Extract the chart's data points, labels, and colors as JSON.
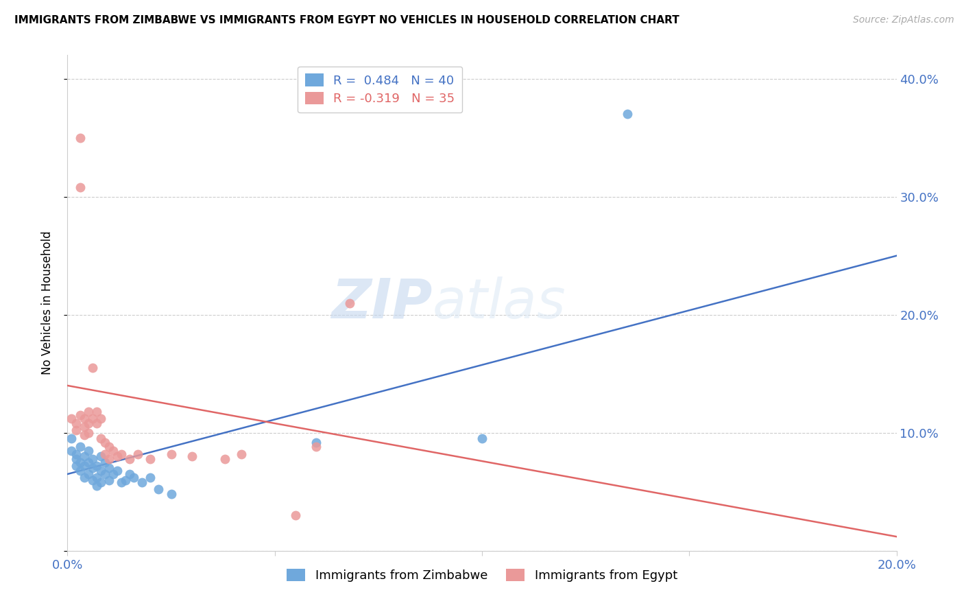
{
  "title": "IMMIGRANTS FROM ZIMBABWE VS IMMIGRANTS FROM EGYPT NO VEHICLES IN HOUSEHOLD CORRELATION CHART",
  "source": "Source: ZipAtlas.com",
  "ylabel": "No Vehicles in Household",
  "y_ticks": [
    0.0,
    0.1,
    0.2,
    0.3,
    0.4
  ],
  "x_ticks": [
    0.0,
    0.05,
    0.1,
    0.15,
    0.2
  ],
  "xlim": [
    0.0,
    0.2
  ],
  "ylim": [
    0.0,
    0.42
  ],
  "color_zimbabwe": "#6fa8dc",
  "color_egypt": "#ea9999",
  "color_line_zimbabwe": "#4472c4",
  "color_line_egypt": "#e06666",
  "color_axis_labels": "#4472c4",
  "color_grid": "#cccccc",
  "watermark_zip": "ZIP",
  "watermark_atlas": "atlas",
  "zimbabwe_points": [
    [
      0.001,
      0.095
    ],
    [
      0.001,
      0.085
    ],
    [
      0.002,
      0.082
    ],
    [
      0.002,
      0.078
    ],
    [
      0.002,
      0.072
    ],
    [
      0.003,
      0.088
    ],
    [
      0.003,
      0.075
    ],
    [
      0.003,
      0.068
    ],
    [
      0.004,
      0.08
    ],
    [
      0.004,
      0.072
    ],
    [
      0.004,
      0.062
    ],
    [
      0.005,
      0.085
    ],
    [
      0.005,
      0.075
    ],
    [
      0.005,
      0.065
    ],
    [
      0.006,
      0.078
    ],
    [
      0.006,
      0.07
    ],
    [
      0.006,
      0.06
    ],
    [
      0.007,
      0.072
    ],
    [
      0.007,
      0.062
    ],
    [
      0.007,
      0.055
    ],
    [
      0.008,
      0.08
    ],
    [
      0.008,
      0.068
    ],
    [
      0.008,
      0.058
    ],
    [
      0.009,
      0.075
    ],
    [
      0.009,
      0.065
    ],
    [
      0.01,
      0.07
    ],
    [
      0.01,
      0.06
    ],
    [
      0.011,
      0.065
    ],
    [
      0.012,
      0.068
    ],
    [
      0.013,
      0.058
    ],
    [
      0.014,
      0.06
    ],
    [
      0.015,
      0.065
    ],
    [
      0.016,
      0.062
    ],
    [
      0.018,
      0.058
    ],
    [
      0.02,
      0.062
    ],
    [
      0.022,
      0.052
    ],
    [
      0.025,
      0.048
    ],
    [
      0.06,
      0.092
    ],
    [
      0.1,
      0.095
    ],
    [
      0.135,
      0.37
    ]
  ],
  "egypt_points": [
    [
      0.001,
      0.112
    ],
    [
      0.002,
      0.108
    ],
    [
      0.002,
      0.102
    ],
    [
      0.003,
      0.35
    ],
    [
      0.003,
      0.308
    ],
    [
      0.003,
      0.115
    ],
    [
      0.004,
      0.112
    ],
    [
      0.004,
      0.105
    ],
    [
      0.004,
      0.098
    ],
    [
      0.005,
      0.118
    ],
    [
      0.005,
      0.108
    ],
    [
      0.005,
      0.1
    ],
    [
      0.006,
      0.155
    ],
    [
      0.006,
      0.112
    ],
    [
      0.007,
      0.118
    ],
    [
      0.007,
      0.108
    ],
    [
      0.008,
      0.112
    ],
    [
      0.008,
      0.095
    ],
    [
      0.009,
      0.092
    ],
    [
      0.009,
      0.082
    ],
    [
      0.01,
      0.088
    ],
    [
      0.01,
      0.078
    ],
    [
      0.011,
      0.085
    ],
    [
      0.012,
      0.08
    ],
    [
      0.013,
      0.082
    ],
    [
      0.015,
      0.078
    ],
    [
      0.017,
      0.082
    ],
    [
      0.02,
      0.078
    ],
    [
      0.025,
      0.082
    ],
    [
      0.03,
      0.08
    ],
    [
      0.038,
      0.078
    ],
    [
      0.042,
      0.082
    ],
    [
      0.055,
      0.03
    ],
    [
      0.06,
      0.088
    ],
    [
      0.068,
      0.21
    ]
  ],
  "zim_line_x": [
    0.0,
    0.2
  ],
  "zim_line_y": [
    0.065,
    0.25
  ],
  "egy_line_x": [
    0.0,
    0.2
  ],
  "egy_line_y": [
    0.14,
    0.012
  ]
}
